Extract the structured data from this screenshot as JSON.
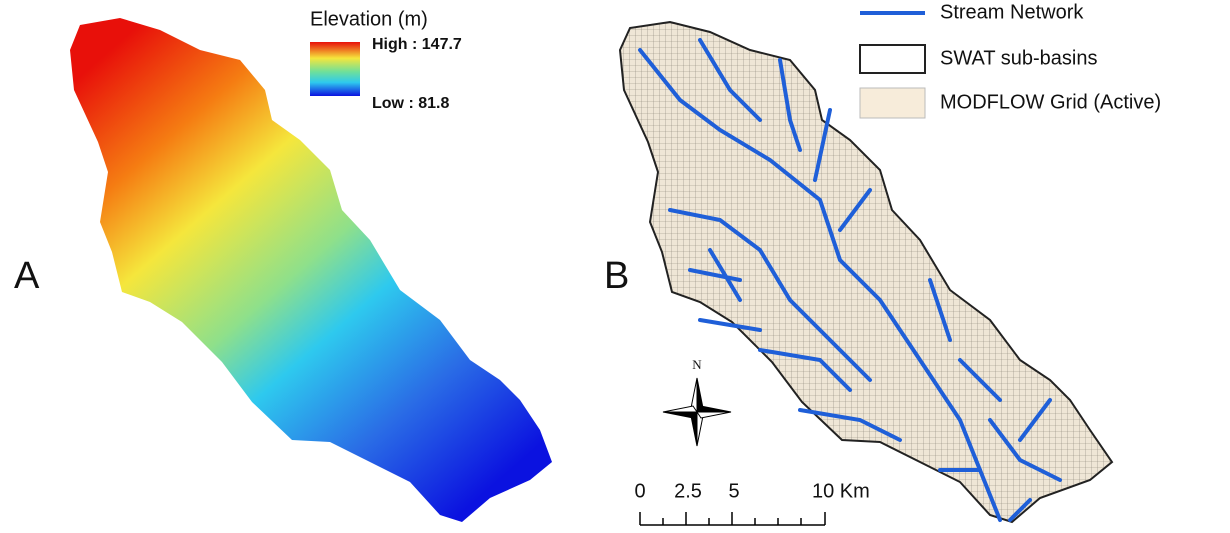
{
  "panel_a": {
    "label": "A",
    "legend": {
      "title": "Elevation (m)",
      "high": "High : 147.7",
      "low": "Low : 81.8"
    }
  },
  "panel_b": {
    "label": "B",
    "legend": {
      "items": [
        "Stream Network",
        "SWAT sub-basins",
        "MODFLOW Grid (Active)"
      ]
    },
    "north": "N",
    "scale": {
      "labels": [
        "0",
        "2.5",
        "5",
        "10 Km"
      ]
    }
  }
}
